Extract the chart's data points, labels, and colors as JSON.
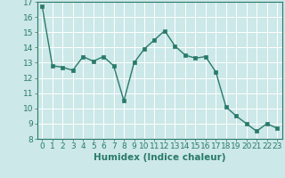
{
  "x": [
    0,
    1,
    2,
    3,
    4,
    5,
    6,
    7,
    8,
    9,
    10,
    11,
    12,
    13,
    14,
    15,
    16,
    17,
    18,
    19,
    20,
    21,
    22,
    23
  ],
  "y": [
    16.7,
    12.8,
    12.7,
    12.5,
    13.4,
    13.1,
    13.4,
    12.8,
    10.5,
    13.0,
    13.9,
    14.5,
    15.1,
    14.1,
    13.5,
    13.3,
    13.4,
    12.4,
    10.1,
    9.5,
    9.0,
    8.5,
    9.0,
    8.7
  ],
  "line_color": "#2a7a6a",
  "marker": "s",
  "marker_size": 2.5,
  "bg_color": "#cce8e8",
  "grid_color": "#b0d0d0",
  "xlabel": "Humidex (Indice chaleur)",
  "ylim": [
    8,
    17
  ],
  "xlim": [
    -0.5,
    23.5
  ],
  "yticks": [
    8,
    9,
    10,
    11,
    12,
    13,
    14,
    15,
    16,
    17
  ],
  "xticks": [
    0,
    1,
    2,
    3,
    4,
    5,
    6,
    7,
    8,
    9,
    10,
    11,
    12,
    13,
    14,
    15,
    16,
    17,
    18,
    19,
    20,
    21,
    22,
    23
  ],
  "xlabel_fontsize": 7.5,
  "tick_fontsize": 6.5
}
